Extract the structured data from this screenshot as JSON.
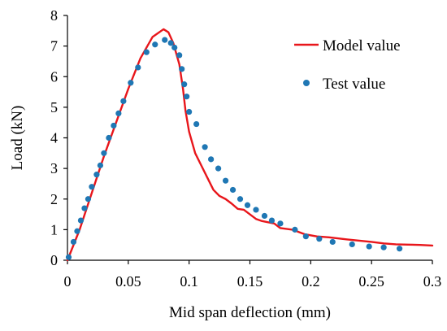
{
  "chart_data": {
    "type": "line",
    "title": "",
    "xlabel": "Mid span deflection (mm)",
    "ylabel": "Load (kN)",
    "xlim": [
      0,
      0.3
    ],
    "ylim": [
      0,
      8
    ],
    "x_ticks": [
      "0",
      "0.05",
      "0.1",
      "0.15",
      "0.2",
      "0.25",
      "0.3"
    ],
    "y_ticks": [
      "0",
      "1",
      "2",
      "3",
      "4",
      "5",
      "6",
      "7",
      "8"
    ],
    "grid": false,
    "legend_position": "top-right",
    "series": [
      {
        "name": "Model value",
        "type": "line",
        "color": "#e8161b",
        "points": [
          [
            0,
            0
          ],
          [
            0.01,
            1.0
          ],
          [
            0.02,
            2.2
          ],
          [
            0.03,
            3.4
          ],
          [
            0.04,
            4.5
          ],
          [
            0.05,
            5.6
          ],
          [
            0.06,
            6.6
          ],
          [
            0.07,
            7.3
          ],
          [
            0.079,
            7.55
          ],
          [
            0.083,
            7.45
          ],
          [
            0.087,
            7.1
          ],
          [
            0.092,
            6.4
          ],
          [
            0.095,
            5.6
          ],
          [
            0.097,
            4.9
          ],
          [
            0.1,
            4.2
          ],
          [
            0.105,
            3.5
          ],
          [
            0.11,
            3.1
          ],
          [
            0.115,
            2.7
          ],
          [
            0.12,
            2.3
          ],
          [
            0.125,
            2.1
          ],
          [
            0.13,
            2.0
          ],
          [
            0.135,
            1.85
          ],
          [
            0.14,
            1.68
          ],
          [
            0.145,
            1.65
          ],
          [
            0.15,
            1.5
          ],
          [
            0.155,
            1.35
          ],
          [
            0.16,
            1.28
          ],
          [
            0.17,
            1.2
          ],
          [
            0.175,
            1.05
          ],
          [
            0.185,
            1.0
          ],
          [
            0.195,
            0.85
          ],
          [
            0.205,
            0.78
          ],
          [
            0.215,
            0.75
          ],
          [
            0.23,
            0.68
          ],
          [
            0.25,
            0.6
          ],
          [
            0.26,
            0.55
          ],
          [
            0.27,
            0.52
          ],
          [
            0.28,
            0.51
          ],
          [
            0.29,
            0.5
          ],
          [
            0.3,
            0.48
          ]
        ]
      },
      {
        "name": "Test value",
        "type": "scatter",
        "color": "#1f77b4",
        "points": [
          [
            0.001,
            0.1
          ],
          [
            0.005,
            0.6
          ],
          [
            0.008,
            0.95
          ],
          [
            0.011,
            1.3
          ],
          [
            0.014,
            1.7
          ],
          [
            0.017,
            2.0
          ],
          [
            0.02,
            2.4
          ],
          [
            0.024,
            2.8
          ],
          [
            0.027,
            3.1
          ],
          [
            0.03,
            3.5
          ],
          [
            0.034,
            4.0
          ],
          [
            0.038,
            4.4
          ],
          [
            0.042,
            4.8
          ],
          [
            0.046,
            5.2
          ],
          [
            0.052,
            5.8
          ],
          [
            0.058,
            6.3
          ],
          [
            0.065,
            6.8
          ],
          [
            0.072,
            7.05
          ],
          [
            0.08,
            7.2
          ],
          [
            0.085,
            7.1
          ],
          [
            0.088,
            6.95
          ],
          [
            0.092,
            6.7
          ],
          [
            0.094,
            6.25
          ],
          [
            0.096,
            5.75
          ],
          [
            0.098,
            5.35
          ],
          [
            0.1,
            4.85
          ],
          [
            0.106,
            4.45
          ],
          [
            0.113,
            3.7
          ],
          [
            0.118,
            3.3
          ],
          [
            0.124,
            3.0
          ],
          [
            0.13,
            2.6
          ],
          [
            0.136,
            2.3
          ],
          [
            0.142,
            2.0
          ],
          [
            0.148,
            1.8
          ],
          [
            0.155,
            1.65
          ],
          [
            0.162,
            1.45
          ],
          [
            0.168,
            1.3
          ],
          [
            0.175,
            1.2
          ],
          [
            0.187,
            1.0
          ],
          [
            0.196,
            0.78
          ],
          [
            0.207,
            0.7
          ],
          [
            0.218,
            0.6
          ],
          [
            0.234,
            0.52
          ],
          [
            0.248,
            0.45
          ],
          [
            0.26,
            0.42
          ],
          [
            0.273,
            0.38
          ]
        ]
      }
    ]
  }
}
